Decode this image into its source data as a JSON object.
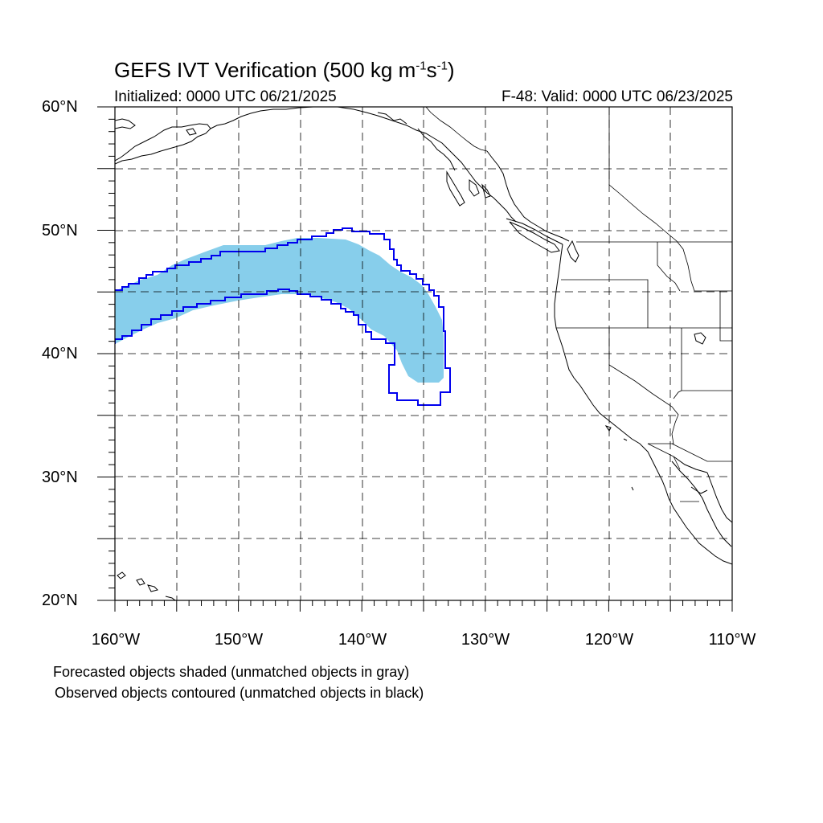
{
  "title": {
    "prefix": "GEFS IVT Verification (500 kg m",
    "exp1": "-1",
    "mid": "s",
    "exp2": "-1",
    "suffix": ")"
  },
  "initialized": "Initialized: 0000 UTC 06/21/2025",
  "valid": "F-48: Valid: 0000 UTC 06/23/2025",
  "axes": {
    "lat_labels": [
      "60°N",
      "50°N",
      "40°N",
      "30°N",
      "20°N"
    ],
    "lon_labels": [
      "160°W",
      "150°W",
      "140°W",
      "130°W",
      "120°W",
      "110°W"
    ],
    "lat_range": [
      20,
      60
    ],
    "lon_range": [
      -160,
      -110
    ],
    "grid": "dashed, every 5°"
  },
  "legend": {
    "forecast_note": "Forecasted objects shaded (unmatched objects in gray)",
    "observed_note": "Observed objects contoured (unmatched objects in black)"
  },
  "colors": {
    "forecast_fill": "#87CEEB",
    "observed_contour": "#0000EE",
    "coastline": "#000000",
    "grid": "#000000"
  },
  "objects": {
    "forecast_object": "matched forecast IVT object (shaded light blue)",
    "observed_object": "matched observed IVT object (blue contour)"
  }
}
